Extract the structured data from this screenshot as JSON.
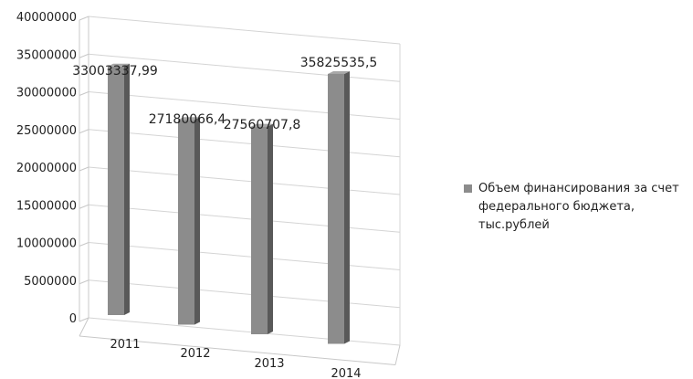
{
  "chart_data": {
    "type": "bar",
    "categories": [
      "2011",
      "2012",
      "2013",
      "2014"
    ],
    "series": [
      {
        "name": "Объем финансирования за счет федерального бюджета, тыс.рублей",
        "values": [
          33003337.99,
          27180066.4,
          27560707.8,
          35825535.5
        ],
        "labels": [
          "33003337,99",
          "27180066,4",
          "27560707,8",
          "35825535,5"
        ],
        "color": "#8c8c8c"
      }
    ],
    "yticks": [
      "0",
      "5000000",
      "10000000",
      "15000000",
      "20000000",
      "25000000",
      "30000000",
      "35000000",
      "40000000"
    ],
    "ylim": [
      0,
      40000000
    ],
    "grid": true,
    "legend_position": "right",
    "style": "3d-column"
  }
}
